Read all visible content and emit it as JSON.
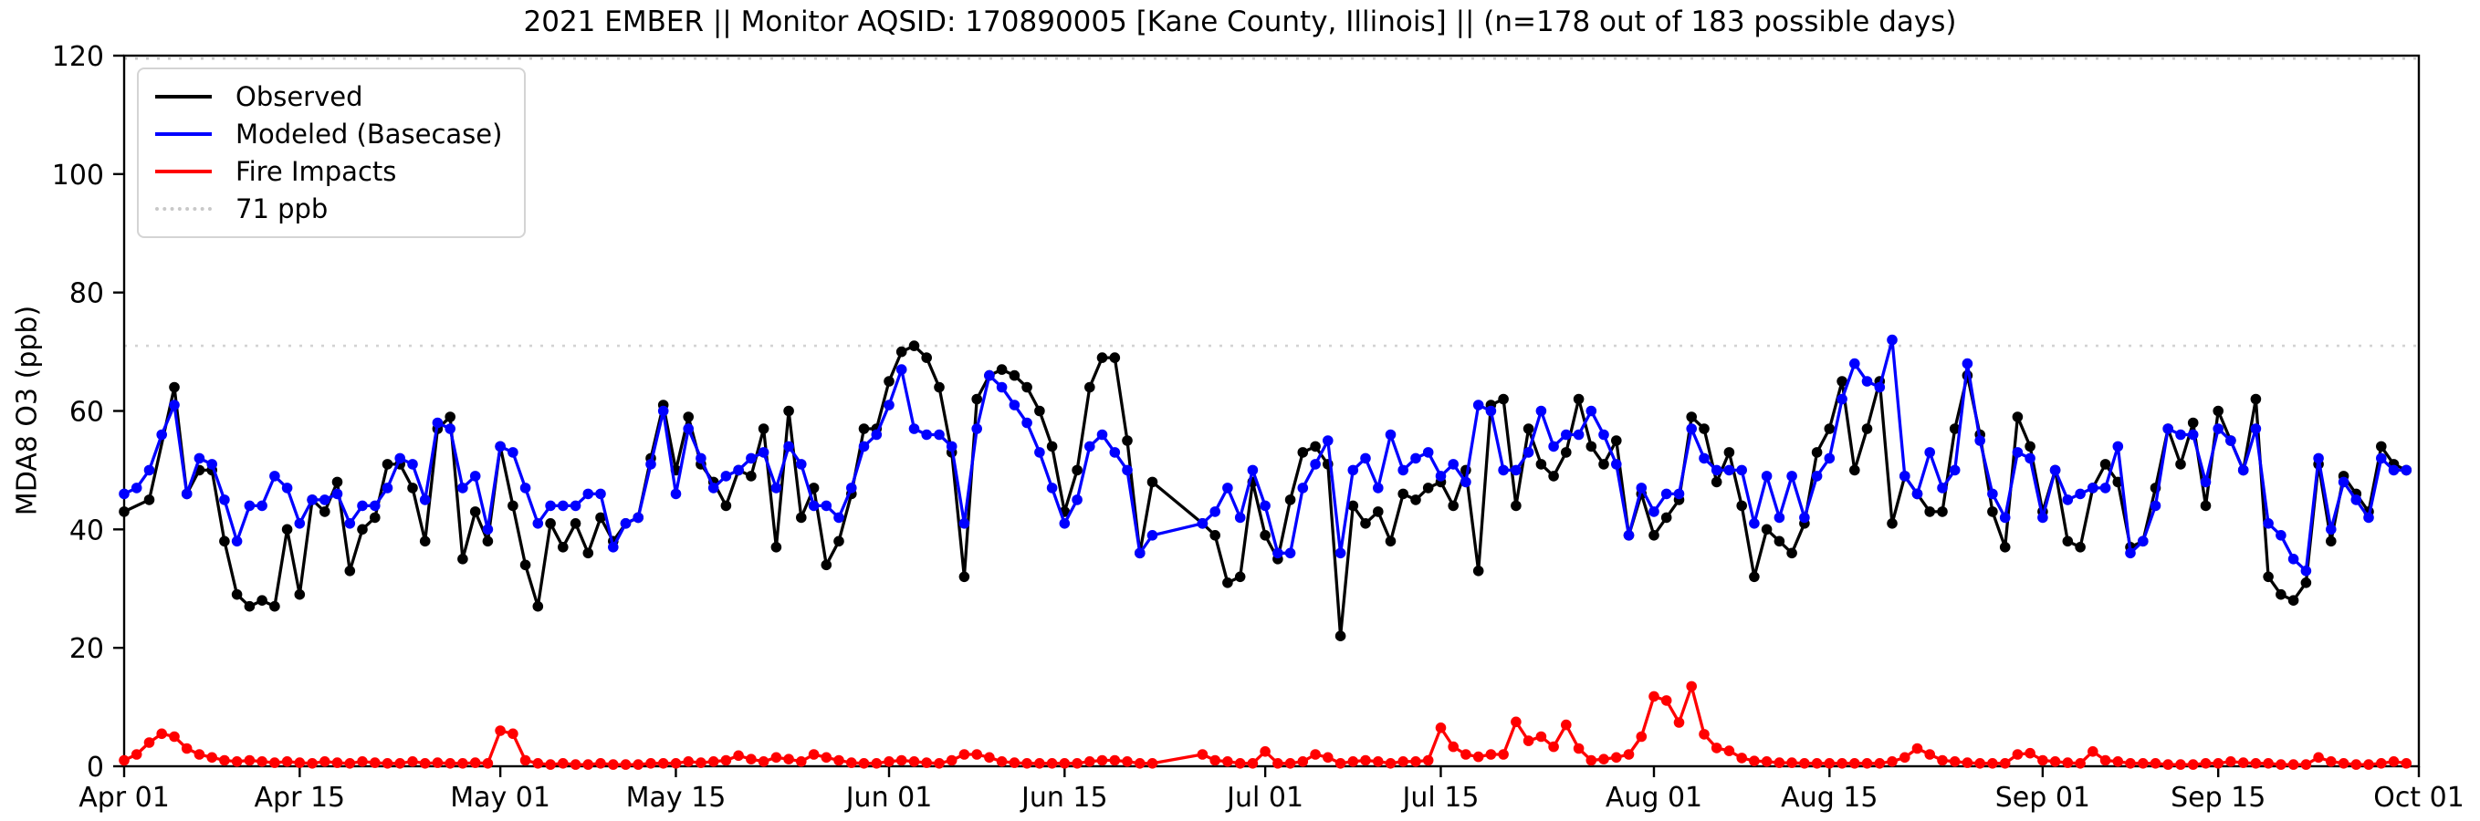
{
  "title": "2021 EMBER || Monitor AQSID: 170890005 [Kane County, Illinois] || (n=178 out of 183 possible days)",
  "y_axis": {
    "label": "MDA8 O3 (ppb)"
  },
  "legend": {
    "items": [
      {
        "label": "Observed",
        "color": "#000000",
        "style": "solid"
      },
      {
        "label": "Modeled (Basecase)",
        "color": "#0000ff",
        "style": "solid"
      },
      {
        "label": "Fire Impacts",
        "color": "#ff0000",
        "style": "solid"
      },
      {
        "label": "71 ppb",
        "color": "#d3d3d3",
        "style": "dotted"
      }
    ]
  },
  "chart_data": {
    "type": "line",
    "title": "2021 EMBER || Monitor AQSID: 170890005 [Kane County, Illinois] || (n=178 out of 183 possible days)",
    "xlabel": "",
    "ylabel": "MDA8 O3 (ppb)",
    "ylim": [
      0,
      120
    ],
    "y_ticks": [
      0,
      20,
      40,
      60,
      80,
      100,
      120
    ],
    "x_range_days": [
      0,
      183
    ],
    "x_ticks": [
      {
        "day": 0,
        "label": "Apr 01"
      },
      {
        "day": 14,
        "label": "Apr 15"
      },
      {
        "day": 30,
        "label": "May 01"
      },
      {
        "day": 44,
        "label": "May 15"
      },
      {
        "day": 61,
        "label": "Jun 01"
      },
      {
        "day": 75,
        "label": "Jun 15"
      },
      {
        "day": 91,
        "label": "Jul 01"
      },
      {
        "day": 105,
        "label": "Jul 15"
      },
      {
        "day": 122,
        "label": "Aug 01"
      },
      {
        "day": 136,
        "label": "Aug 15"
      },
      {
        "day": 153,
        "label": "Sep 01"
      },
      {
        "day": 167,
        "label": "Sep 15"
      },
      {
        "day": 183,
        "label": "Oct 01"
      }
    ],
    "threshold_ppb": 71,
    "top_dotted_line_ppb": 119.5,
    "grid": false,
    "legend_position": "upper left",
    "marker": "circle",
    "series": [
      {
        "name": "Observed",
        "color": "#000000",
        "values": [
          43,
          null,
          45,
          null,
          64,
          46,
          50,
          50,
          38,
          29,
          27,
          28,
          27,
          40,
          29,
          45,
          43,
          48,
          33,
          40,
          42,
          51,
          51,
          47,
          38,
          57,
          59,
          35,
          43,
          38,
          54,
          44,
          34,
          27,
          41,
          37,
          41,
          36,
          42,
          38,
          41,
          42,
          52,
          61,
          50,
          59,
          51,
          48,
          44,
          50,
          49,
          57,
          37,
          60,
          42,
          47,
          34,
          38,
          46,
          57,
          57,
          65,
          70,
          71,
          69,
          64,
          53,
          32,
          62,
          66,
          67,
          66,
          64,
          60,
          54,
          43,
          50,
          64,
          69,
          69,
          55,
          36,
          48,
          null,
          null,
          null,
          41,
          39,
          31,
          32,
          48,
          39,
          35,
          45,
          53,
          54,
          51,
          22,
          44,
          41,
          43,
          38,
          46,
          45,
          47,
          48,
          44,
          50,
          33,
          61,
          62,
          44,
          57,
          51,
          49,
          53,
          62,
          54,
          51,
          55,
          39,
          46,
          39,
          42,
          45,
          59,
          57,
          48,
          53,
          44,
          32,
          40,
          38,
          36,
          41,
          53,
          57,
          65,
          50,
          57,
          65,
          41,
          49,
          46,
          43,
          43,
          57,
          66,
          56,
          43,
          37,
          59,
          54,
          43,
          50,
          38,
          37,
          47,
          51,
          48,
          37,
          38,
          47,
          57,
          51,
          58,
          44,
          60,
          55,
          50,
          62,
          32,
          29,
          28,
          31,
          51,
          38,
          49,
          46,
          43,
          54,
          51,
          50
        ]
      },
      {
        "name": "Modeled (Basecase)",
        "color": "#0000ff",
        "values": [
          46,
          47,
          50,
          56,
          61,
          46,
          52,
          51,
          45,
          38,
          44,
          44,
          49,
          47,
          41,
          45,
          45,
          46,
          41,
          44,
          44,
          47,
          52,
          51,
          45,
          58,
          57,
          47,
          49,
          40,
          54,
          53,
          47,
          41,
          44,
          44,
          44,
          46,
          46,
          37,
          41,
          42,
          51,
          60,
          46,
          57,
          52,
          47,
          49,
          50,
          52,
          53,
          47,
          54,
          51,
          44,
          44,
          42,
          47,
          54,
          56,
          61,
          67,
          57,
          56,
          56,
          54,
          41,
          57,
          66,
          64,
          61,
          58,
          53,
          47,
          41,
          45,
          54,
          56,
          53,
          50,
          36,
          39,
          null,
          null,
          null,
          41,
          43,
          47,
          42,
          50,
          44,
          36,
          36,
          47,
          51,
          55,
          36,
          50,
          52,
          47,
          56,
          50,
          52,
          53,
          49,
          51,
          48,
          61,
          60,
          50,
          50,
          53,
          60,
          54,
          56,
          56,
          60,
          56,
          51,
          39,
          47,
          43,
          46,
          46,
          57,
          52,
          50,
          50,
          50,
          41,
          49,
          42,
          49,
          42,
          49,
          52,
          62,
          68,
          65,
          64,
          72,
          49,
          46,
          53,
          47,
          50,
          68,
          55,
          46,
          42,
          53,
          52,
          42,
          50,
          45,
          46,
          47,
          47,
          54,
          36,
          38,
          44,
          57,
          56,
          56,
          48,
          57,
          55,
          50,
          57,
          41,
          39,
          35,
          33,
          52,
          40,
          48,
          45,
          42,
          52,
          50,
          50
        ]
      },
      {
        "name": "Fire Impacts",
        "color": "#ff0000",
        "values": [
          1,
          2,
          4,
          5.5,
          5,
          3,
          2,
          1.5,
          1,
          0.8,
          1,
          0.8,
          0.6,
          0.8,
          0.6,
          0.5,
          0.8,
          0.6,
          0.5,
          0.8,
          0.6,
          0.5,
          0.5,
          0.8,
          0.5,
          0.6,
          0.5,
          0.5,
          0.6,
          0.5,
          6,
          5.5,
          1,
          0.5,
          0.3,
          0.5,
          0.3,
          0.3,
          0.5,
          0.3,
          0.3,
          0.3,
          0.5,
          0.5,
          0.5,
          0.8,
          0.6,
          0.8,
          1,
          1.8,
          1.2,
          0.8,
          1.5,
          1.2,
          0.8,
          2,
          1.5,
          1,
          0.6,
          0.5,
          0.5,
          0.8,
          1,
          0.8,
          0.6,
          0.5,
          1,
          2,
          2,
          1.5,
          0.8,
          0.6,
          0.5,
          0.5,
          0.5,
          0.5,
          0.5,
          0.8,
          1,
          1,
          0.8,
          0.5,
          0.5,
          null,
          null,
          null,
          2,
          1,
          0.8,
          0.5,
          0.5,
          2.5,
          0.5,
          0.5,
          0.8,
          2,
          1.5,
          0.5,
          0.8,
          1,
          0.8,
          0.5,
          0.8,
          0.8,
          1,
          6.5,
          3.3,
          2,
          1.6,
          2,
          2,
          7.5,
          4.3,
          5,
          3.3,
          7,
          3,
          1,
          1.2,
          1.5,
          2,
          5,
          11.8,
          11.1,
          7.4,
          13.5,
          5.4,
          3.1,
          2.6,
          1.4,
          0.9,
          0.8,
          0.6,
          0.6,
          0.5,
          0.5,
          0.5,
          0.5,
          0.5,
          0.5,
          0.5,
          0.8,
          1.5,
          3,
          2,
          1,
          0.8,
          0.6,
          0.5,
          0.5,
          0.5,
          2,
          2.2,
          1,
          0.8,
          0.6,
          0.5,
          2.5,
          1,
          0.8,
          0.5,
          0.5,
          0.5,
          0.3,
          0.3,
          0.3,
          0.5,
          0.5,
          0.8,
          0.6,
          0.5,
          0.5,
          0.3,
          0.3,
          0.3,
          1.5,
          0.8,
          0.5,
          0.3,
          0.3,
          0.5,
          0.8,
          0.5
        ]
      }
    ]
  }
}
